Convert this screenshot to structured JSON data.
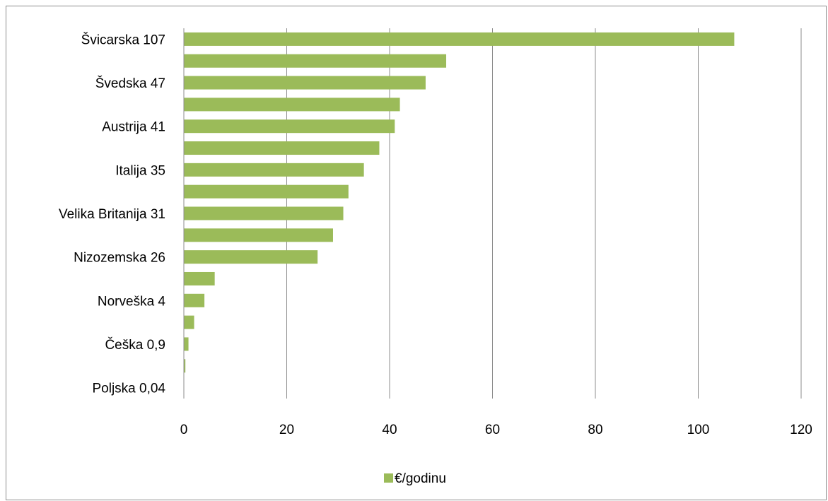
{
  "chart_data": {
    "type": "bar",
    "orientation": "horizontal",
    "categories": [
      "Švicarska 107",
      "",
      "Švedska 47",
      "",
      "Austrija 41",
      "",
      "Italija 35",
      "",
      "Velika Britanija 31",
      "",
      "Nizozemska 26",
      "",
      "Norveška 4",
      "",
      "Češka 0,9",
      "",
      "Poljska 0,04"
    ],
    "series": [
      {
        "name": "€/godinu",
        "color": "#9bbb59",
        "values": [
          107,
          51,
          47,
          42,
          41,
          38,
          35,
          32,
          31,
          29,
          26,
          6,
          4,
          2,
          0.9,
          0.3,
          0.04
        ]
      }
    ],
    "xlim": [
      0,
      120
    ],
    "xticks": [
      0,
      20,
      40,
      60,
      80,
      100,
      120
    ],
    "xtick_labels": [
      "0",
      "20",
      "40",
      "60",
      "80",
      "100",
      "120"
    ],
    "grid": true,
    "legend": "bottom",
    "title": "",
    "xlabel": "",
    "ylabel": ""
  }
}
